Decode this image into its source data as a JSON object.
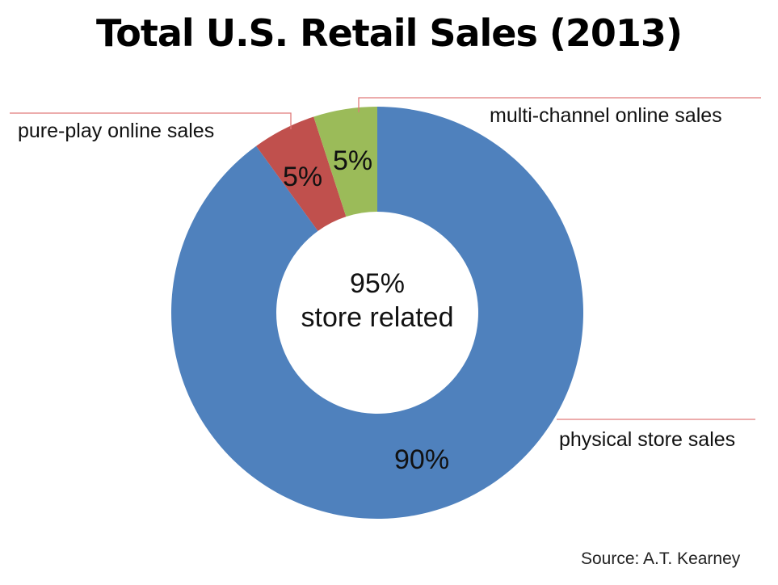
{
  "slide": {
    "title": "Total U.S. Retail Sales (2013)",
    "center_label": {
      "value": "95%",
      "text": "store related"
    },
    "source": "Source: A.T. Kearney"
  },
  "colors": {
    "physical": "#4F81BD",
    "pure_play": "#C0504D",
    "multi_channel": "#9BBB59",
    "leader_line": "#E07A7A"
  },
  "chart_data": {
    "type": "pie",
    "subtype": "donut",
    "title": "Total U.S. Retail Sales (2013)",
    "categories": [
      "physical store sales",
      "pure-play online sales",
      "multi-channel online sales"
    ],
    "values": [
      90,
      5,
      5
    ],
    "data_labels": [
      "90%",
      "5%",
      "5%"
    ],
    "colors": [
      "#4F81BD",
      "#C0504D",
      "#9BBB59"
    ],
    "center_annotation": "95% store related",
    "source": "Source: A.T. Kearney",
    "legend": "none (direct labels with leader lines)"
  },
  "labels": {
    "physical": "physical store sales",
    "pure_play": "pure-play online sales",
    "multi_channel": "multi-channel online sales",
    "physical_pct": "90%",
    "pure_play_pct": "5%",
    "multi_channel_pct": "5%"
  }
}
